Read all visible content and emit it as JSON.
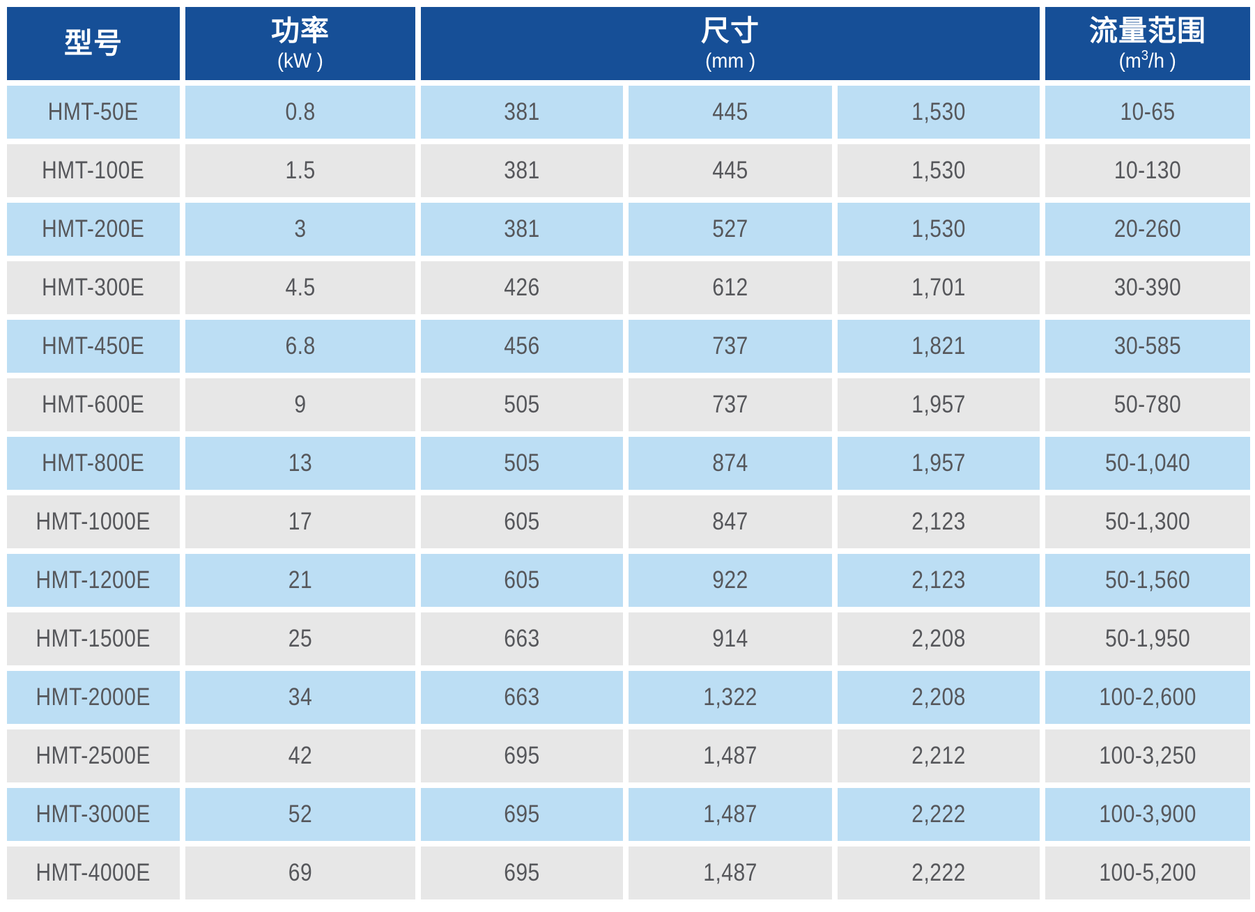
{
  "chart_data": {
    "type": "table",
    "header": {
      "model_title": "型号",
      "power_title": "功率",
      "power_unit": "(kW )",
      "size_title": "尺寸",
      "size_unit": "(mm )",
      "flow_title": "流量范围",
      "flow_unit_prefix": "(m",
      "flow_unit_sup": "3",
      "flow_unit_suffix": "/h )"
    },
    "rows": [
      {
        "model": "HMT-50E",
        "power": "0.8",
        "dim1": "381",
        "dim2": "445",
        "dim3": "1,530",
        "flow": "10-65"
      },
      {
        "model": "HMT-100E",
        "power": "1.5",
        "dim1": "381",
        "dim2": "445",
        "dim3": "1,530",
        "flow": "10-130"
      },
      {
        "model": "HMT-200E",
        "power": "3",
        "dim1": "381",
        "dim2": "527",
        "dim3": "1,530",
        "flow": "20-260"
      },
      {
        "model": "HMT-300E",
        "power": "4.5",
        "dim1": "426",
        "dim2": "612",
        "dim3": "1,701",
        "flow": "30-390"
      },
      {
        "model": "HMT-450E",
        "power": "6.8",
        "dim1": "456",
        "dim2": "737",
        "dim3": "1,821",
        "flow": "30-585"
      },
      {
        "model": "HMT-600E",
        "power": "9",
        "dim1": "505",
        "dim2": "737",
        "dim3": "1,957",
        "flow": "50-780"
      },
      {
        "model": "HMT-800E",
        "power": "13",
        "dim1": "505",
        "dim2": "874",
        "dim3": "1,957",
        "flow": "50-1,040"
      },
      {
        "model": "HMT-1000E",
        "power": "17",
        "dim1": "605",
        "dim2": "847",
        "dim3": "2,123",
        "flow": "50-1,300"
      },
      {
        "model": "HMT-1200E",
        "power": "21",
        "dim1": "605",
        "dim2": "922",
        "dim3": "2,123",
        "flow": "50-1,560"
      },
      {
        "model": "HMT-1500E",
        "power": "25",
        "dim1": "663",
        "dim2": "914",
        "dim3": "2,208",
        "flow": "50-1,950"
      },
      {
        "model": "HMT-2000E",
        "power": "34",
        "dim1": "663",
        "dim2": "1,322",
        "dim3": "2,208",
        "flow": "100-2,600"
      },
      {
        "model": "HMT-2500E",
        "power": "42",
        "dim1": "695",
        "dim2": "1,487",
        "dim3": "2,212",
        "flow": "100-3,250"
      },
      {
        "model": "HMT-3000E",
        "power": "52",
        "dim1": "695",
        "dim2": "1,487",
        "dim3": "2,222",
        "flow": "100-3,900"
      },
      {
        "model": "HMT-4000E",
        "power": "69",
        "dim1": "695",
        "dim2": "1,487",
        "dim3": "2,222",
        "flow": "100-5,200"
      }
    ],
    "layout": {
      "striping": "odd rows light blue, even rows light gray",
      "size_header_colspan": 3
    }
  },
  "colors": {
    "header_bg": "#164f97",
    "header_text": "#ffffff",
    "row_blue": "#bcdef4",
    "row_gray": "#e7e7e7",
    "cell_text": "#56575b",
    "background": "#ffffff"
  }
}
